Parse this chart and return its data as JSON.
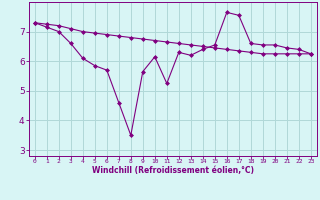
{
  "x": [
    0,
    1,
    2,
    3,
    4,
    5,
    6,
    7,
    8,
    9,
    10,
    11,
    12,
    13,
    14,
    15,
    16,
    17,
    18,
    19,
    20,
    21,
    22,
    23
  ],
  "line1": [
    7.3,
    7.15,
    7.0,
    6.6,
    6.1,
    5.85,
    5.7,
    4.6,
    3.5,
    5.65,
    6.15,
    5.25,
    6.3,
    6.2,
    6.4,
    6.55,
    7.65,
    7.55,
    6.6,
    6.55,
    6.55,
    6.45,
    6.4,
    6.25
  ],
  "line2": [
    7.3,
    7.25,
    7.2,
    7.1,
    7.0,
    6.95,
    6.9,
    6.85,
    6.8,
    6.75,
    6.7,
    6.65,
    6.6,
    6.55,
    6.5,
    6.45,
    6.4,
    6.35,
    6.3,
    6.25,
    6.25,
    6.25,
    6.25,
    6.25
  ],
  "color": "#800080",
  "bg_color": "#d8f5f5",
  "grid_color": "#b0d8d8",
  "xlabel": "Windchill (Refroidissement éolien,°C)",
  "yticks": [
    3,
    4,
    5,
    6,
    7
  ],
  "ylim": [
    2.8,
    8.0
  ],
  "xlim": [
    -0.5,
    23.5
  ]
}
